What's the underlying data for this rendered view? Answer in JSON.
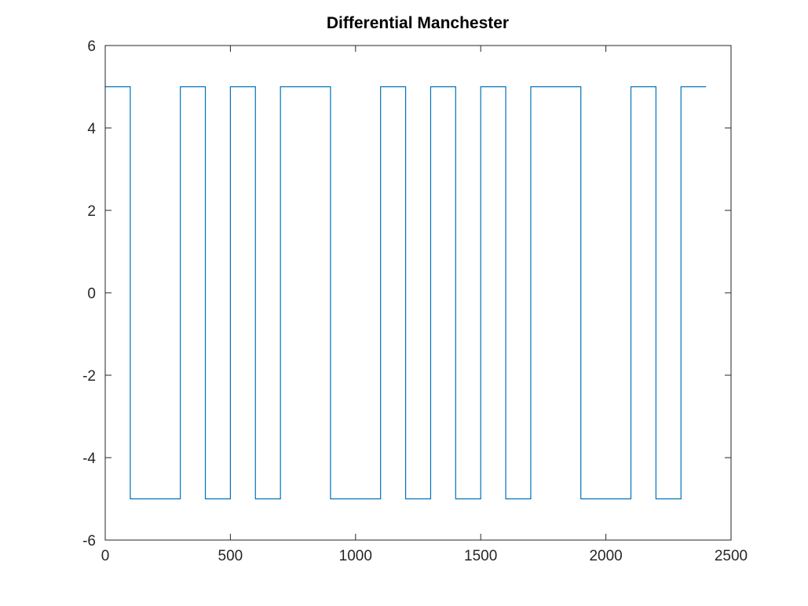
{
  "chart_data": {
    "type": "line",
    "title": "Differential Manchester",
    "xlabel": "",
    "ylabel": "",
    "xlim": [
      0,
      2500
    ],
    "ylim": [
      -6,
      6
    ],
    "xticks": [
      0,
      500,
      1000,
      1500,
      2000,
      2500
    ],
    "yticks": [
      -6,
      -4,
      -2,
      0,
      2,
      4,
      6
    ],
    "xtick_labels": [
      "0",
      "500",
      "1000",
      "1500",
      "2000",
      "2500"
    ],
    "ytick_labels": [
      "-6",
      "-4",
      "-2",
      "0",
      "2",
      "4",
      "6"
    ],
    "grid": false,
    "box": true,
    "series": [
      {
        "color": "#0072bd",
        "step": true,
        "x": [
          0,
          100,
          100,
          300,
          300,
          400,
          400,
          500,
          500,
          600,
          600,
          700,
          700,
          900,
          900,
          1100,
          1100,
          1200,
          1200,
          1300,
          1300,
          1400,
          1400,
          1500,
          1500,
          1600,
          1600,
          1700,
          1700,
          1900,
          1900,
          2100,
          2100,
          2200,
          2200,
          2300,
          2300,
          2400
        ],
        "y": [
          5,
          5,
          -5,
          -5,
          5,
          5,
          -5,
          -5,
          5,
          5,
          -5,
          -5,
          5,
          5,
          -5,
          -5,
          5,
          5,
          -5,
          -5,
          5,
          5,
          -5,
          -5,
          5,
          5,
          -5,
          -5,
          5,
          5,
          -5,
          -5,
          5,
          5,
          -5,
          -5,
          5,
          5
        ]
      }
    ]
  }
}
